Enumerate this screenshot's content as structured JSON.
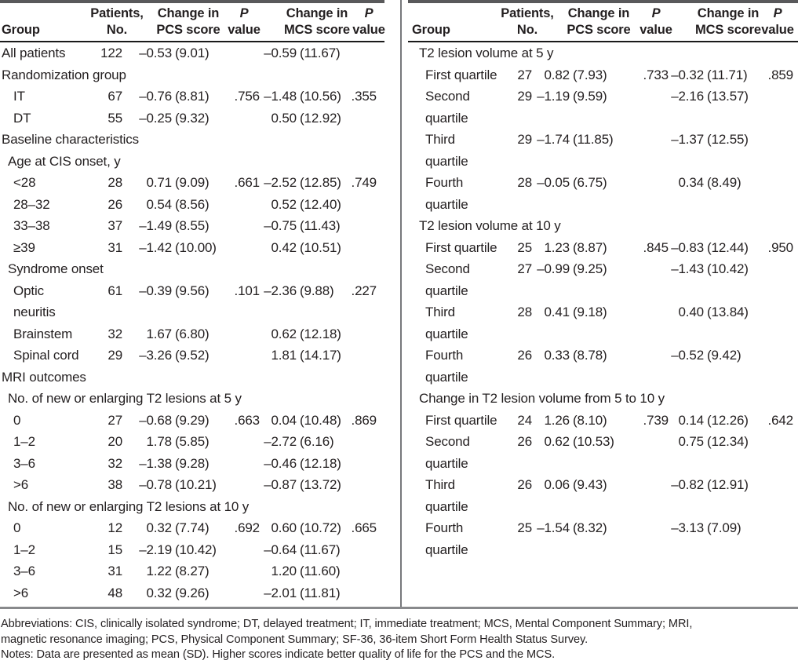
{
  "colors": {
    "text": "#231f20",
    "top_rule": "#59595b",
    "header_rule": "#1a1a1a",
    "column_divider": "#77787b",
    "bottom_rule": "#88898c",
    "background": "#ffffff"
  },
  "header": {
    "group": "Group",
    "patients_line1": "Patients,",
    "patients_line2": "No.",
    "change_line1": "Change in",
    "pcs_line2": "PCS score",
    "mcs_line2": "MCS score",
    "p": "P",
    "value": "value"
  },
  "left_table": {
    "rows": [
      {
        "type": "data",
        "indent": 0,
        "group": "All patients",
        "n": "122",
        "pcs_mean": "–0.53",
        "pcs_sd": "(9.01)",
        "p1": "",
        "mcs_mean": "–0.59",
        "mcs_sd": "(11.67)",
        "p2": ""
      },
      {
        "type": "section",
        "indent": 0,
        "group": "Randomization group"
      },
      {
        "type": "data",
        "indent": 2,
        "group": "IT",
        "n": "67",
        "pcs_mean": "–0.76",
        "pcs_sd": "(8.81)",
        "p1": ".756",
        "mcs_mean": "–1.48",
        "mcs_sd": "(10.56)",
        "p2": ".355"
      },
      {
        "type": "data",
        "indent": 2,
        "group": "DT",
        "n": "55",
        "pcs_mean": "–0.25",
        "pcs_sd": "(9.32)",
        "p1": "",
        "mcs_mean": "0.50",
        "mcs_sd": "(12.92)",
        "p2": ""
      },
      {
        "type": "section",
        "indent": 0,
        "group": "Baseline characteristics"
      },
      {
        "type": "section",
        "indent": 1,
        "group": "Age at CIS onset, y"
      },
      {
        "type": "data",
        "indent": 2,
        "group": "<28",
        "n": "28",
        "pcs_mean": "0.71",
        "pcs_sd": "(9.09)",
        "p1": ".661",
        "mcs_mean": "–2.52",
        "mcs_sd": "(12.85)",
        "p2": ".749"
      },
      {
        "type": "data",
        "indent": 2,
        "group": "28–32",
        "n": "26",
        "pcs_mean": "0.54",
        "pcs_sd": "(8.56)",
        "p1": "",
        "mcs_mean": "0.52",
        "mcs_sd": "(12.40)",
        "p2": ""
      },
      {
        "type": "data",
        "indent": 2,
        "group": "33–38",
        "n": "37",
        "pcs_mean": "–1.49",
        "pcs_sd": "(8.55)",
        "p1": "",
        "mcs_mean": "–0.75",
        "mcs_sd": "(11.43)",
        "p2": ""
      },
      {
        "type": "data",
        "indent": 2,
        "group": "≥39",
        "n": "31",
        "pcs_mean": "–1.42",
        "pcs_sd": "(10.00)",
        "p1": "",
        "mcs_mean": "0.42",
        "mcs_sd": "(10.51)",
        "p2": ""
      },
      {
        "type": "section",
        "indent": 1,
        "group": "Syndrome onset"
      },
      {
        "type": "data",
        "indent": 2,
        "group": "Optic\nneuritis",
        "n": "61",
        "pcs_mean": "–0.39",
        "pcs_sd": "(9.56)",
        "p1": ".101",
        "mcs_mean": "–2.36",
        "mcs_sd": "(9.88)",
        "p2": ".227"
      },
      {
        "type": "data",
        "indent": 2,
        "group": "Brainstem",
        "n": "32",
        "pcs_mean": "1.67",
        "pcs_sd": "(6.80)",
        "p1": "",
        "mcs_mean": "0.62",
        "mcs_sd": "(12.18)",
        "p2": ""
      },
      {
        "type": "data",
        "indent": 2,
        "group": "Spinal cord",
        "n": "29",
        "pcs_mean": "–3.26",
        "pcs_sd": "(9.52)",
        "p1": "",
        "mcs_mean": "1.81",
        "mcs_sd": "(14.17)",
        "p2": ""
      },
      {
        "type": "section",
        "indent": 0,
        "group": "MRI outcomes"
      },
      {
        "type": "section",
        "indent": 1,
        "group": "No. of new or enlarging T2 lesions at 5 y"
      },
      {
        "type": "data",
        "indent": 2,
        "group": "0",
        "n": "27",
        "pcs_mean": "–0.68",
        "pcs_sd": "(9.29)",
        "p1": ".663",
        "mcs_mean": "0.04",
        "mcs_sd": "(10.48)",
        "p2": ".869"
      },
      {
        "type": "data",
        "indent": 2,
        "group": "1–2",
        "n": "20",
        "pcs_mean": "1.78",
        "pcs_sd": "(5.85)",
        "p1": "",
        "mcs_mean": "–2.72",
        "mcs_sd": "(6.16)",
        "p2": ""
      },
      {
        "type": "data",
        "indent": 2,
        "group": "3–6",
        "n": "32",
        "pcs_mean": "–1.38",
        "pcs_sd": "(9.28)",
        "p1": "",
        "mcs_mean": "–0.46",
        "mcs_sd": "(12.18)",
        "p2": ""
      },
      {
        "type": "data",
        "indent": 2,
        "group": ">6",
        "n": "38",
        "pcs_mean": "–0.78",
        "pcs_sd": "(10.21)",
        "p1": "",
        "mcs_mean": "–0.87",
        "mcs_sd": "(13.72)",
        "p2": ""
      },
      {
        "type": "section",
        "indent": 1,
        "group": "No. of new or enlarging T2 lesions at 10 y"
      },
      {
        "type": "data",
        "indent": 2,
        "group": "0",
        "n": "12",
        "pcs_mean": "0.32",
        "pcs_sd": "(7.74)",
        "p1": ".692",
        "mcs_mean": "0.60",
        "mcs_sd": "(10.72)",
        "p2": ".665"
      },
      {
        "type": "data",
        "indent": 2,
        "group": "1–2",
        "n": "15",
        "pcs_mean": "–2.19",
        "pcs_sd": "(10.42)",
        "p1": "",
        "mcs_mean": "–0.64",
        "mcs_sd": "(11.67)",
        "p2": ""
      },
      {
        "type": "data",
        "indent": 2,
        "group": "3–6",
        "n": "31",
        "pcs_mean": "1.22",
        "pcs_sd": "(8.27)",
        "p1": "",
        "mcs_mean": "1.20",
        "mcs_sd": "(11.60)",
        "p2": ""
      },
      {
        "type": "data",
        "indent": 2,
        "group": ">6",
        "n": "48",
        "pcs_mean": "0.32",
        "pcs_sd": "(9.26)",
        "p1": "",
        "mcs_mean": "–2.01",
        "mcs_sd": "(11.81)",
        "p2": ""
      }
    ]
  },
  "right_table": {
    "rows": [
      {
        "type": "section",
        "indent": 1,
        "group": "T2 lesion volume at 5 y"
      },
      {
        "type": "data",
        "indent": 2,
        "group": "First quartile",
        "n": "27",
        "pcs_mean": "0.82",
        "pcs_sd": "(7.93)",
        "p1": ".733",
        "mcs_mean": "–0.32",
        "mcs_sd": "(11.71)",
        "p2": ".859"
      },
      {
        "type": "data",
        "indent": 2,
        "group": "Second\nquartile",
        "n": "29",
        "pcs_mean": "–1.19",
        "pcs_sd": "(9.59)",
        "p1": "",
        "mcs_mean": "–2.16",
        "mcs_sd": "(13.57)",
        "p2": ""
      },
      {
        "type": "data",
        "indent": 2,
        "group": "Third\nquartile",
        "n": "29",
        "pcs_mean": "–1.74",
        "pcs_sd": "(11.85)",
        "p1": "",
        "mcs_mean": "–1.37",
        "mcs_sd": "(12.55)",
        "p2": ""
      },
      {
        "type": "data",
        "indent": 2,
        "group": "Fourth\nquartile",
        "n": "28",
        "pcs_mean": "–0.05",
        "pcs_sd": "(6.75)",
        "p1": "",
        "mcs_mean": "0.34",
        "mcs_sd": "(8.49)",
        "p2": ""
      },
      {
        "type": "section",
        "indent": 1,
        "group": "T2 lesion volume at 10 y"
      },
      {
        "type": "data",
        "indent": 2,
        "group": "First quartile",
        "n": "25",
        "pcs_mean": "1.23",
        "pcs_sd": "(8.87)",
        "p1": ".845",
        "mcs_mean": "–0.83",
        "mcs_sd": "(12.44)",
        "p2": ".950"
      },
      {
        "type": "data",
        "indent": 2,
        "group": "Second\nquartile",
        "n": "27",
        "pcs_mean": "–0.99",
        "pcs_sd": "(9.25)",
        "p1": "",
        "mcs_mean": "–1.43",
        "mcs_sd": "(10.42)",
        "p2": ""
      },
      {
        "type": "data",
        "indent": 2,
        "group": "Third\nquartile",
        "n": "28",
        "pcs_mean": "0.41",
        "pcs_sd": "(9.18)",
        "p1": "",
        "mcs_mean": "0.40",
        "mcs_sd": "(13.84)",
        "p2": ""
      },
      {
        "type": "data",
        "indent": 2,
        "group": "Fourth\nquartile",
        "n": "26",
        "pcs_mean": "0.33",
        "pcs_sd": "(8.78)",
        "p1": "",
        "mcs_mean": "–0.52",
        "mcs_sd": "(9.42)",
        "p2": ""
      },
      {
        "type": "section",
        "indent": 1,
        "group": "Change in T2 lesion volume from 5 to 10 y"
      },
      {
        "type": "data",
        "indent": 2,
        "group": "First quartile",
        "n": "24",
        "pcs_mean": "1.26",
        "pcs_sd": "(8.10)",
        "p1": ".739",
        "mcs_mean": "0.14",
        "mcs_sd": "(12.26)",
        "p2": ".642"
      },
      {
        "type": "data",
        "indent": 2,
        "group": "Second\nquartile",
        "n": "26",
        "pcs_mean": "0.62",
        "pcs_sd": "(10.53)",
        "p1": "",
        "mcs_mean": "0.75",
        "mcs_sd": "(12.34)",
        "p2": ""
      },
      {
        "type": "data",
        "indent": 2,
        "group": "Third\nquartile",
        "n": "26",
        "pcs_mean": "0.06",
        "pcs_sd": "(9.43)",
        "p1": "",
        "mcs_mean": "–0.82",
        "mcs_sd": "(12.91)",
        "p2": ""
      },
      {
        "type": "data",
        "indent": 2,
        "group": "Fourth\nquartile",
        "n": "25",
        "pcs_mean": "–1.54",
        "pcs_sd": "(8.32)",
        "p1": "",
        "mcs_mean": "–3.13",
        "mcs_sd": "(7.09)",
        "p2": ""
      }
    ]
  },
  "footer": {
    "lines": [
      "Abbreviations: CIS, clinically isolated syndrome; DT, delayed treatment; IT, immediate treatment; MCS, Mental Component Summary; MRI,",
      "magnetic resonance imaging; PCS, Physical Component Summary; SF-36, 36-item Short Form Health Status Survey.",
      "Notes: Data are presented as mean (SD). Higher scores indicate better quality of life for the PCS and the MCS."
    ]
  }
}
